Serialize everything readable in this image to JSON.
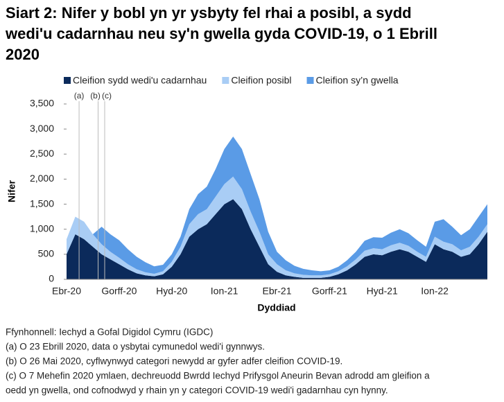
{
  "chart_data": {
    "type": "stacked-area",
    "title": [
      "Siart 2: Nifer y bobl yn yr ysbyty fel rhai a posibl, a sydd",
      "wedi'u cadarnhau neu sy'n gwella gyda COVID-19, o 1 Ebrill",
      "2020"
    ],
    "xlabel": "Dyddiad",
    "ylabel": "Nifer",
    "categories": [
      "Ebr-20",
      null,
      null,
      null,
      null,
      null,
      "Gorff-20",
      null,
      null,
      null,
      null,
      null,
      "Hyd-20",
      null,
      null,
      null,
      null,
      null,
      "Ion-21",
      null,
      null,
      null,
      null,
      null,
      "Ebr-21",
      null,
      null,
      null,
      null,
      null,
      "Gorff-21",
      null,
      null,
      null,
      null,
      null,
      "Hyd-21",
      null,
      null,
      null,
      null,
      null,
      "Ion-22",
      null,
      null,
      null,
      null,
      null,
      null
    ],
    "series": [
      {
        "name": "Cleifion sydd wedi'u cadarnhau",
        "color": "#0b2a5b",
        "values": [
          500,
          900,
          800,
          650,
          500,
          400,
          300,
          200,
          120,
          80,
          60,
          100,
          250,
          500,
          850,
          1000,
          1100,
          1300,
          1500,
          1600,
          1400,
          1000,
          650,
          300,
          150,
          80,
          50,
          30,
          30,
          30,
          50,
          100,
          180,
          300,
          450,
          500,
          480,
          550,
          600,
          550,
          450,
          350,
          700,
          600,
          550,
          450,
          500,
          700,
          950
        ]
      },
      {
        "name": "Cleifion posibl",
        "color": "#a9cdf5",
        "values": [
          300,
          350,
          350,
          250,
          200,
          150,
          130,
          100,
          80,
          60,
          50,
          60,
          100,
          150,
          250,
          300,
          300,
          350,
          400,
          450,
          400,
          350,
          300,
          200,
          150,
          100,
          70,
          60,
          50,
          50,
          50,
          60,
          80,
          100,
          120,
          120,
          120,
          130,
          130,
          120,
          100,
          100,
          150,
          150,
          150,
          130,
          150,
          150,
          150
        ]
      },
      {
        "name": "Cleifion sy’n gwella",
        "color": "#5a9be6",
        "values": [
          0,
          0,
          0,
          0,
          350,
          350,
          350,
          300,
          250,
          200,
          150,
          130,
          150,
          200,
          300,
          400,
          450,
          550,
          700,
          800,
          800,
          750,
          650,
          450,
          250,
          200,
          150,
          120,
          100,
          80,
          80,
          90,
          120,
          150,
          200,
          220,
          230,
          250,
          270,
          250,
          230,
          200,
          300,
          450,
          350,
          300,
          350,
          400,
          400
        ]
      }
    ],
    "ylim": [
      0,
      3500
    ],
    "yticks": [
      0,
      500,
      {
        "value": 1000,
        "label": "1,000"
      },
      {
        "value": 1500,
        "label": "1,500"
      },
      {
        "value": 2000,
        "label": "2,000"
      },
      {
        "value": 2500,
        "label": "2,500"
      },
      {
        "value": 3000,
        "label": "3,000"
      },
      {
        "value": 3500,
        "label": "3,500"
      }
    ],
    "grid": false,
    "annotations": [
      "(a)",
      "(b)",
      "(c)"
    ],
    "footnotes": [
      "Ffynhonnell: Iechyd a Gofal Digidol Cymru (IGDC)",
      "(a) O 23 Ebrill 2020, data o ysbytai cymunedol wedi'i gynnwys.",
      "(b) O 26 Mai 2020, cyflwynwyd categori newydd ar gyfer adfer cleifion COVID-19.",
      "(c) O 7 Mehefin 2020 ymlaen, dechreuodd Bwrdd Iechyd Prifysgol Aneurin Bevan adrodd am gleifion a",
      "oedd yn gwella, ond cofnodwyd y rhain yn y categori COVID-19 wedi'i gadarnhau cyn hynny."
    ]
  }
}
